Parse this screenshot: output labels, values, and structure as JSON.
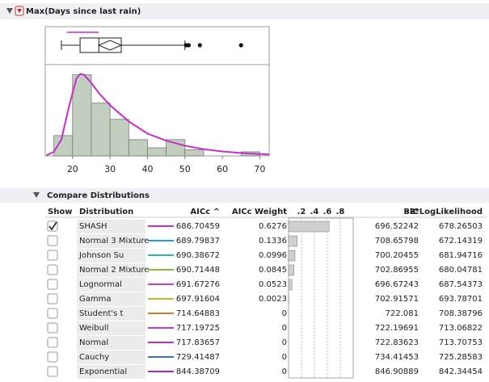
{
  "header": {
    "title": "Max(Days since last rain)"
  },
  "histogram": {
    "bins": [
      15,
      20,
      25,
      30,
      35,
      40,
      45,
      50,
      55,
      60,
      65,
      70
    ],
    "counts": [
      10,
      40,
      26,
      18,
      8,
      4,
      8,
      3,
      0,
      0,
      2
    ],
    "xlim": [
      12.7,
      72.5
    ],
    "ylim": [
      0,
      45
    ],
    "xticks": [
      20,
      30,
      40,
      50,
      60,
      70
    ],
    "bar_color": "#c2cfbf",
    "boxplot": {
      "min": 17,
      "q1": 22,
      "median": 27,
      "q3": 33,
      "max": 50,
      "mean_ci": [
        27,
        33
      ],
      "shortest_half": [
        18.5,
        27
      ],
      "outliers": [
        50.3,
        51,
        54,
        65
      ]
    },
    "density": {
      "color": "#c42fc8",
      "x": [
        13,
        15,
        17,
        19,
        21,
        22,
        23,
        25,
        27,
        30,
        35,
        40,
        45,
        50,
        55,
        60,
        65,
        70,
        72.5
      ],
      "y": [
        0.3,
        2,
        8,
        24,
        38,
        40.4,
        40,
        36,
        31,
        25,
        17,
        11,
        7.5,
        5,
        3.3,
        2.2,
        1.4,
        0.9,
        0.7
      ]
    }
  },
  "compare": {
    "title": "Compare Distributions",
    "columns": [
      "Show",
      "Distribution",
      "AICc ^",
      "AICc Weight",
      "BIC",
      "-2*LogLikelihood"
    ],
    "weight_ticks": [
      {
        "value": 0.2,
        "label": ".2"
      },
      {
        "value": 0.4,
        "label": ".4"
      },
      {
        "value": 0.6,
        "label": ".6"
      },
      {
        "value": 0.8,
        "label": ".8"
      }
    ],
    "weight_lim": [
      0,
      1
    ],
    "rows": [
      {
        "show": true,
        "name": "SHASH",
        "color": "#c42fc8",
        "aicc": 686.70459,
        "weight": 0.6276,
        "bic": 696.52242,
        "loglik": 678.26503
      },
      {
        "show": false,
        "name": "Normal 3 Mixture",
        "color": "#1f9fd8",
        "aicc": 689.79837,
        "weight": 0.1336,
        "bic": 708.65798,
        "loglik": 672.14319
      },
      {
        "show": false,
        "name": "Johnson Su",
        "color": "#2fb5b0",
        "aicc": 690.38672,
        "weight": 0.0996,
        "bic": 700.20455,
        "loglik": 681.94716
      },
      {
        "show": false,
        "name": "Normal 2 Mixture",
        "color": "#8cbc34",
        "aicc": 690.71448,
        "weight": 0.0845,
        "bic": 702.86955,
        "loglik": 680.04781
      },
      {
        "show": false,
        "name": "Lognormal",
        "color": "#c83ccc",
        "aicc": 691.67276,
        "weight": 0.0523,
        "bic": 696.67243,
        "loglik": 687.54373
      },
      {
        "show": false,
        "name": "Gamma",
        "color": "#c9b92a",
        "aicc": 697.91604,
        "weight": 0.0023,
        "bic": 702.91571,
        "loglik": 693.78701
      },
      {
        "show": false,
        "name": "Student's t",
        "color": "#d07a2a",
        "aicc": 714.64883,
        "weight": 0,
        "bic": 722.081,
        "loglik": 708.38796
      },
      {
        "show": false,
        "name": "Weibull",
        "color": "#c838c8",
        "aicc": 717.19725,
        "weight": 0,
        "bic": 722.19691,
        "loglik": 713.06822
      },
      {
        "show": false,
        "name": "Normal",
        "color": "#c030c0",
        "aicc": 717.83657,
        "weight": 0,
        "bic": 722.83623,
        "loglik": 713.70753
      },
      {
        "show": false,
        "name": "Cauchy",
        "color": "#3a6fc8",
        "aicc": 729.41487,
        "weight": 0,
        "bic": 734.41453,
        "loglik": 725.28583
      },
      {
        "show": false,
        "name": "Exponential",
        "color": "#a02ec8",
        "aicc": 844.38709,
        "weight": 0,
        "bic": 846.90889,
        "loglik": 842.34454
      }
    ]
  }
}
